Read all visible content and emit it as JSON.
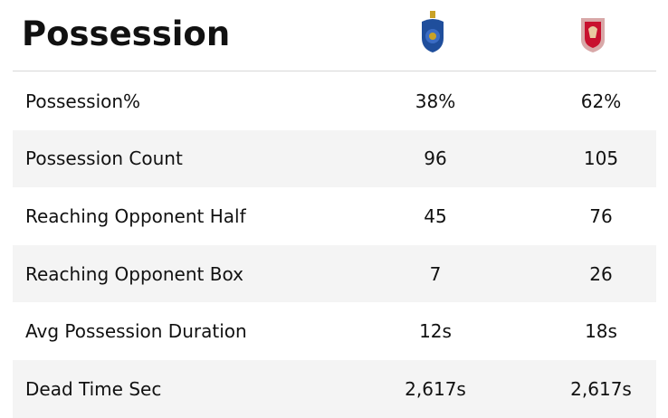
{
  "title": "Possession",
  "table": {
    "rows": [
      [
        "Possession%",
        "38%",
        "62%"
      ],
      [
        "Possession Count",
        "96",
        "105"
      ],
      [
        "Reaching Opponent Half",
        "45",
        "76"
      ],
      [
        "Reaching Opponent Box",
        "7",
        "26"
      ],
      [
        "Avg Possession Duration",
        "12s",
        "18s"
      ],
      [
        "Dead Time Sec",
        "2,617s",
        "2,617s"
      ]
    ]
  }
}
